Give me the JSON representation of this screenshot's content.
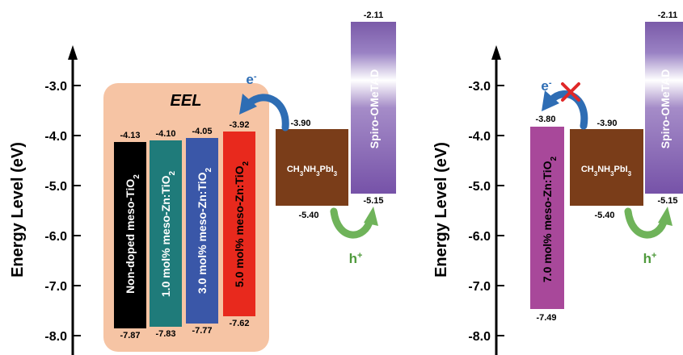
{
  "axis": {
    "ylabel": "Energy Level (eV)",
    "ticks": [
      "-3.0",
      "-4.0",
      "-5.0",
      "-6.0",
      "-7.0",
      "-8.0"
    ]
  },
  "left_panel": {
    "eel_label": "EEL",
    "electron_label": "e",
    "hole_label": "h",
    "layers": [
      {
        "name": "Non-doped meso-TiO2",
        "text": "Non-doped meso-TiO",
        "sub": "2",
        "top": "-4.13",
        "bottom": "-7.87",
        "color": "#000000",
        "text_color": "#ffffff"
      },
      {
        "name": "1.0 mol% meso-Zn:TiO2",
        "text": "1.0 mol% meso-Zn:TiO",
        "sub": "2",
        "top": "-4.10",
        "bottom": "-7.83",
        "color": "#1f7b7a",
        "text_color": "#ffffff"
      },
      {
        "name": "3.0 mol% meso-Zn:TiO2",
        "text": "3.0 mol% meso-Zn:TiO",
        "sub": "2",
        "top": "-4.05",
        "bottom": "-7.77",
        "color": "#3a57a8",
        "text_color": "#ffffff"
      },
      {
        "name": "5.0 mol% meso-Zn:TiO2",
        "text": "5.0 mol% meso-Zn:TiO",
        "sub": "2",
        "top": "-3.92",
        "bottom": "-7.62",
        "color": "#e8291d",
        "text_color": "#000000"
      }
    ],
    "perovskite": {
      "label_main": "CH",
      "top": "-3.90",
      "bottom": "-5.40"
    },
    "spiro": {
      "label": "Spiro-OMeTAD",
      "top": "-2.11",
      "bottom": "-5.15"
    }
  },
  "right_panel": {
    "electron_label": "e",
    "hole_label": "h",
    "layer": {
      "name": "7.0 mol% meso-Zn:TiO2",
      "text": "7.0 mol% meso-Zn:TiO",
      "sub": "2",
      "top": "-3.80",
      "bottom": "-7.49",
      "color": "#a8489a",
      "text_color": "#000000"
    },
    "perovskite": {
      "top": "-3.90",
      "bottom": "-5.40"
    },
    "spiro": {
      "label": "Spiro-OMeTAD",
      "top": "-2.11",
      "bottom": "-5.15"
    }
  },
  "colors": {
    "eel_box": "#f6c4a4",
    "perovskite": "#7a3d19",
    "spiro": "#8060b0",
    "electron_arrow": "#2e6db4",
    "hole_arrow": "#6fb35a",
    "blocked_mark": "#e02828"
  }
}
